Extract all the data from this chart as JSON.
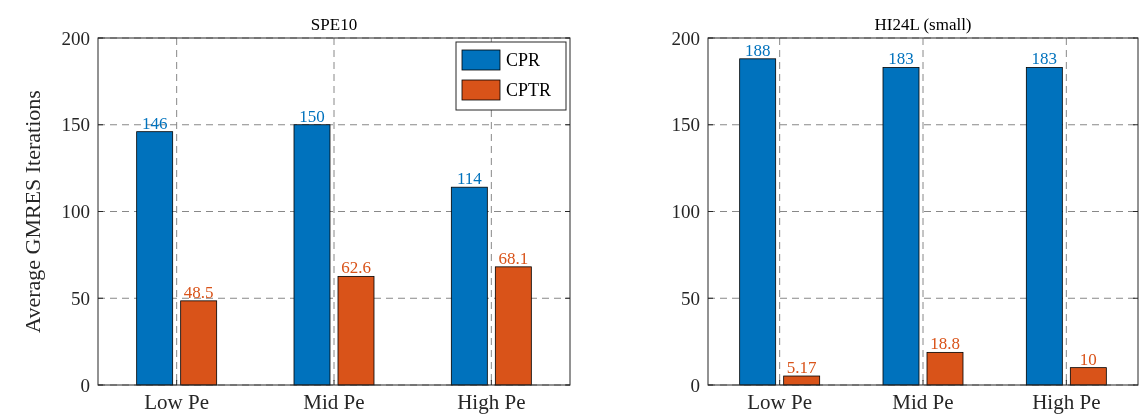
{
  "chart_data": [
    {
      "type": "bar",
      "title": "SPE10",
      "ylabel": "Average GMRES Iterations",
      "categories": [
        "Low Pe",
        "Mid Pe",
        "High Pe"
      ],
      "series": [
        {
          "name": "CPR",
          "color": "#0072bd",
          "values": [
            146,
            150,
            114
          ]
        },
        {
          "name": "CPTR",
          "color": "#d95319",
          "values": [
            48.5,
            62.6,
            68.1
          ]
        }
      ],
      "ylim": [
        0,
        200
      ],
      "yticks": [
        0,
        50,
        100,
        150,
        200
      ],
      "grid": true,
      "legend": "top right",
      "data_labels": true
    },
    {
      "type": "bar",
      "title": "HI24L (small)",
      "categories": [
        "Low Pe",
        "Mid Pe",
        "High Pe"
      ],
      "series": [
        {
          "color": "#0072bd",
          "values": [
            188,
            183,
            183
          ]
        },
        {
          "color": "#d95319",
          "values": [
            5.17,
            18.8,
            10
          ]
        }
      ],
      "ylim": [
        0,
        200
      ],
      "yticks": [
        0,
        50,
        100,
        150,
        200
      ],
      "grid": true,
      "data_labels": true
    }
  ]
}
